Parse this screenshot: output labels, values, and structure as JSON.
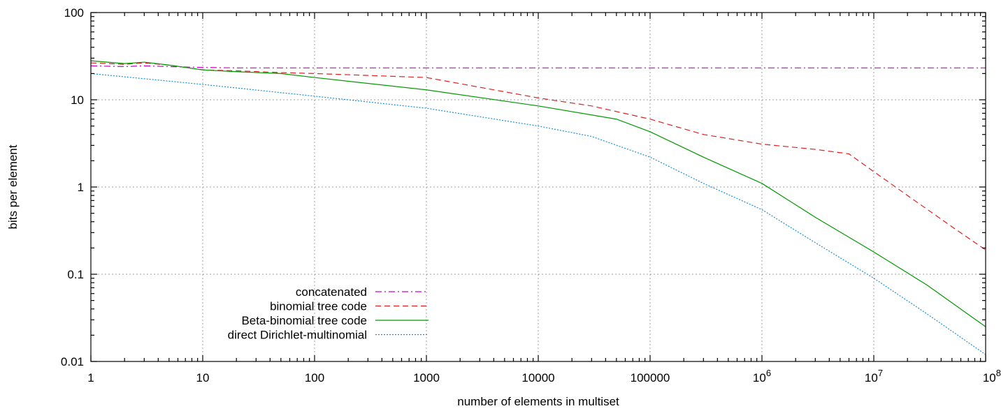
{
  "chart_data": {
    "type": "line",
    "title": "",
    "xlabel": "number of elements in multiset",
    "ylabel": "bits per element",
    "x_scale": "log",
    "y_scale": "log",
    "xlim": [
      1,
      100000000
    ],
    "ylim": [
      0.01,
      100
    ],
    "grid": true,
    "legend_position": "bottom-left",
    "x_ticks": [
      {
        "value": 1,
        "label": "1"
      },
      {
        "value": 10,
        "label": "10"
      },
      {
        "value": 100,
        "label": "100"
      },
      {
        "value": 1000,
        "label": "1000"
      },
      {
        "value": 10000,
        "label": "10000"
      },
      {
        "value": 100000,
        "label": "100000"
      },
      {
        "value": 1000000,
        "label": "10",
        "exp": "6"
      },
      {
        "value": 10000000,
        "label": "10",
        "exp": "7"
      },
      {
        "value": 100000000,
        "label": "10",
        "exp": "8"
      }
    ],
    "y_ticks": [
      {
        "value": 0.01,
        "label": "0.01"
      },
      {
        "value": 0.1,
        "label": "0.1"
      },
      {
        "value": 1,
        "label": "1"
      },
      {
        "value": 10,
        "label": "10"
      },
      {
        "value": 100,
        "label": "100"
      }
    ],
    "series": [
      {
        "name": "concatenated",
        "color": "#cc00cc",
        "dash": "dashdot",
        "points": [
          [
            1,
            24.5
          ],
          [
            2,
            24.0
          ],
          [
            3,
            24.5
          ],
          [
            5,
            24.0
          ],
          [
            10,
            23.5
          ],
          [
            20,
            23.2
          ],
          [
            100,
            23.2
          ],
          [
            1000,
            23.2
          ],
          [
            100000000,
            23.2
          ]
        ]
      },
      {
        "name": "binomial tree code",
        "color": "#e02020",
        "dash": "dashed",
        "points": [
          [
            1,
            26.5
          ],
          [
            2,
            25.5
          ],
          [
            3,
            26.5
          ],
          [
            5,
            25.0
          ],
          [
            10,
            22.0
          ],
          [
            20,
            21.5
          ],
          [
            50,
            20.5
          ],
          [
            100,
            20.0
          ],
          [
            1000,
            18.0
          ],
          [
            10000,
            10.5
          ],
          [
            30000,
            8.5
          ],
          [
            100000,
            6.0
          ],
          [
            300000,
            4.0
          ],
          [
            1000000,
            3.1
          ],
          [
            3000000,
            2.7
          ],
          [
            6000000,
            2.4
          ],
          [
            10000000,
            1.5
          ],
          [
            20000000,
            0.8
          ],
          [
            50000000,
            0.35
          ],
          [
            100000000,
            0.19
          ]
        ]
      },
      {
        "name": "Beta-binomial tree code",
        "color": "#009900",
        "dash": "solid",
        "points": [
          [
            1,
            28.0
          ],
          [
            2,
            26.0
          ],
          [
            3,
            27.0
          ],
          [
            5,
            25.0
          ],
          [
            10,
            22.0
          ],
          [
            20,
            21.0
          ],
          [
            50,
            20.0
          ],
          [
            100,
            18.0
          ],
          [
            1000,
            13.0
          ],
          [
            10000,
            8.5
          ],
          [
            50000,
            6.0
          ],
          [
            100000,
            4.3
          ],
          [
            300000,
            2.2
          ],
          [
            1000000,
            1.1
          ],
          [
            3000000,
            0.45
          ],
          [
            10000000,
            0.18
          ],
          [
            30000000,
            0.075
          ],
          [
            100000000,
            0.025
          ]
        ]
      },
      {
        "name": "direct Dirichlet-multinomial",
        "color": "#1a8fd6",
        "dash": "dotted",
        "points": [
          [
            1,
            20.0
          ],
          [
            10,
            15.0
          ],
          [
            100,
            11.0
          ],
          [
            1000,
            8.0
          ],
          [
            10000,
            5.0
          ],
          [
            30000,
            3.8
          ],
          [
            100000,
            2.2
          ],
          [
            300000,
            1.1
          ],
          [
            1000000,
            0.55
          ],
          [
            3000000,
            0.23
          ],
          [
            10000000,
            0.09
          ],
          [
            30000000,
            0.035
          ],
          [
            100000000,
            0.012
          ]
        ]
      }
    ]
  }
}
